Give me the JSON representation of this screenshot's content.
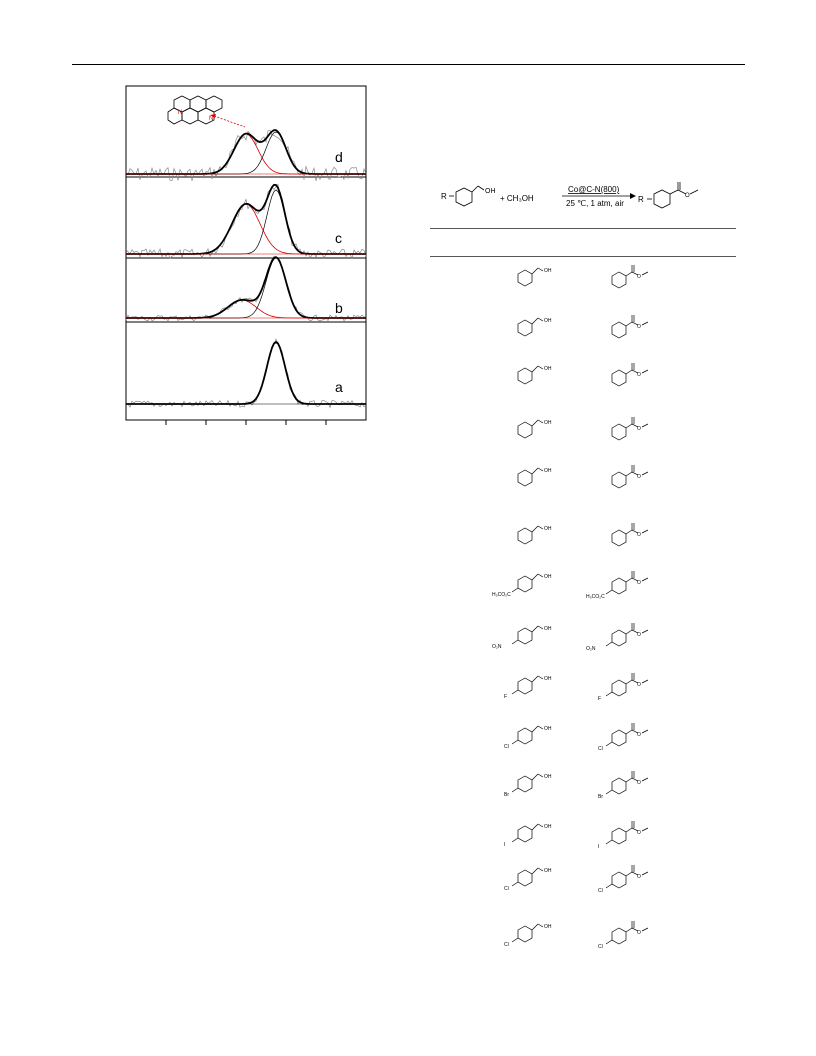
{
  "figure": {
    "panels": [
      {
        "label": "d",
        "has_structure": true
      },
      {
        "label": "c",
        "has_structure": false
      },
      {
        "label": "b",
        "has_structure": false
      },
      {
        "label": "a",
        "has_structure": false
      }
    ]
  },
  "scheme": {
    "reagent": "+ CH₃OH",
    "catalyst": "Co@C-N(800)",
    "conditions": "25 ℃, 1 atm, air",
    "r_label": "R",
    "oh_label": "OH"
  },
  "substrates": [
    {
      "sub": "",
      "oh": "OH"
    },
    {
      "sub": "",
      "oh": "OH"
    },
    {
      "sub": "",
      "oh": "OH"
    },
    {
      "sub": "",
      "oh": "OH"
    },
    {
      "sub": "",
      "oh": "OH"
    },
    {
      "sub": "",
      "oh": "OH"
    },
    {
      "sub": "H₃CO₂C",
      "oh": "OH"
    },
    {
      "sub": "O₂N",
      "oh": "OH"
    },
    {
      "sub": "F",
      "oh": "OH"
    },
    {
      "sub": "Cl",
      "oh": "OH"
    },
    {
      "sub": "Br",
      "oh": "OH"
    },
    {
      "sub": "I",
      "oh": "OH"
    },
    {
      "sub": "Cl",
      "oh": "OH"
    },
    {
      "sub": "Cl",
      "oh": "OH"
    }
  ],
  "products": [
    {
      "sub": ""
    },
    {
      "sub": ""
    },
    {
      "sub": ""
    },
    {
      "sub": ""
    },
    {
      "sub": ""
    },
    {
      "sub": ""
    },
    {
      "sub": "H₃CO₂C"
    },
    {
      "sub": "O₂N"
    },
    {
      "sub": "F"
    },
    {
      "sub": "Cl"
    },
    {
      "sub": "Br"
    },
    {
      "sub": "I"
    },
    {
      "sub": "Cl"
    },
    {
      "sub": "Cl"
    }
  ],
  "atom_labels": {
    "N": "N",
    "O": "O"
  }
}
